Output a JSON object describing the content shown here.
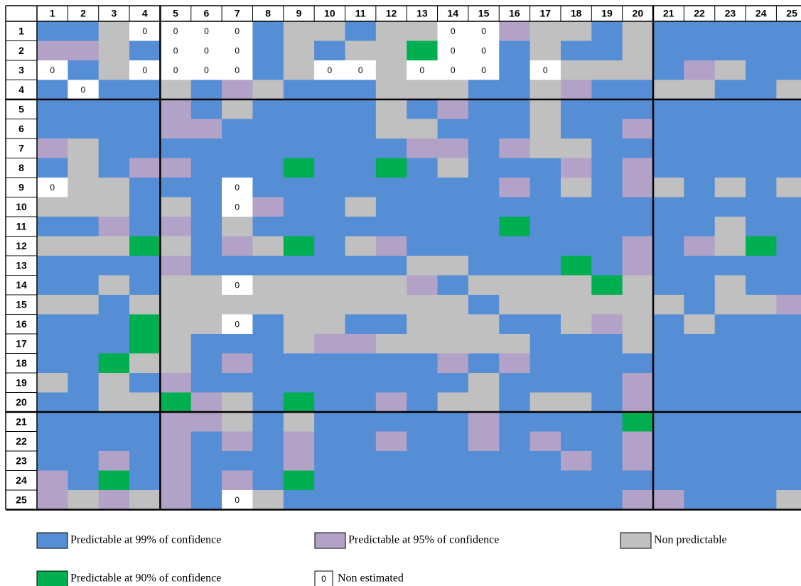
{
  "table": {
    "columns": [
      1,
      2,
      3,
      4,
      5,
      6,
      7,
      8,
      9,
      10,
      11,
      12,
      13,
      14,
      15,
      16,
      17,
      18,
      19,
      20,
      21,
      22,
      23,
      24,
      25
    ],
    "row_labels": [
      1,
      2,
      3,
      4,
      5,
      6,
      7,
      8,
      9,
      10,
      11,
      12,
      13,
      14,
      15,
      16,
      17,
      18,
      19,
      20,
      21,
      22,
      23,
      24,
      25
    ],
    "rows": [
      "B B G 0 0 0 0 B G G B G G 0 0 P G G B G B B B B B",
      "P P G B 0 0 0 B G B G G N 0 0 B G B B G B B B B B",
      "0 B G 0 0 0 0 B G 0 0 G 0 0 0 B 0 G G G B P G B B",
      "B 0 B B G B P G B B B G G G B B G P B B G G B B G",
      "B B B B P B G B B B B G B P B B G B B B B B B B B",
      "B B B B P P B B B B B G G B B B G B B P B B B B B",
      "P G B B B B B B B B B B P P B P G G B B B B B B B",
      "B G B P P B B B N B B N B G B B B P B P B B B B B",
      "0 G G B B B 0 B B B B B B B B P B G B P G B G B G",
      "G G G B G B 0 P B B G B B B B B B B B B B B B B B",
      "B B P B P B G B B B B B B B B N B B B B B B G B B",
      "G G G N G B P G N B G P B B B B B B B P B P G N B",
      "B B B B P B B B B B B B G G B B B N B P B B B B B",
      "B B G B G G 0 G G G G G P B G G G G N G B B G B B",
      "G G B G G G G G G G G G G G B G G G G G G B G G P",
      "B B B N G G 0 B G G B B G G G B B G P G B G B B B",
      "B B B N G B B B G P P G G G G G B B B G B B B B B",
      "B B N G G B P B B B B B B P B P B B B B B B B B B",
      "G B G B P B B B B B B B B B G B B B B P B B B B B",
      "B B G G N P G B N B B P B G G B G G B P B B B B B",
      "B B B B P P G B G B B B B B P B B B B N B B B B B",
      "B B B B P B P B P B B P B B P B P B B P B B B B B",
      "B B P B P B B B P B B B B B B B B P B P B B B B B",
      "P B N B P B P B N B B B B B B B B B B B B B B B B",
      "P G P G P B 0 G B B B B B B B B B B B P P B B B G"
    ]
  },
  "legend": [
    {
      "key": "B",
      "label": "Predictable at 99% of confidence",
      "color": "#558ed5"
    },
    {
      "key": "P",
      "label": "Predictable at 95% of confidence",
      "color": "#b3a2c7"
    },
    {
      "key": "G",
      "label": "Non predictable",
      "color": "#c0c0c0"
    },
    {
      "key": "N",
      "label": "Predictable at 90% of confidence",
      "color": "#00b050"
    },
    {
      "key": "0",
      "label": "Non estimated",
      "color": "#ffffff"
    }
  ]
}
